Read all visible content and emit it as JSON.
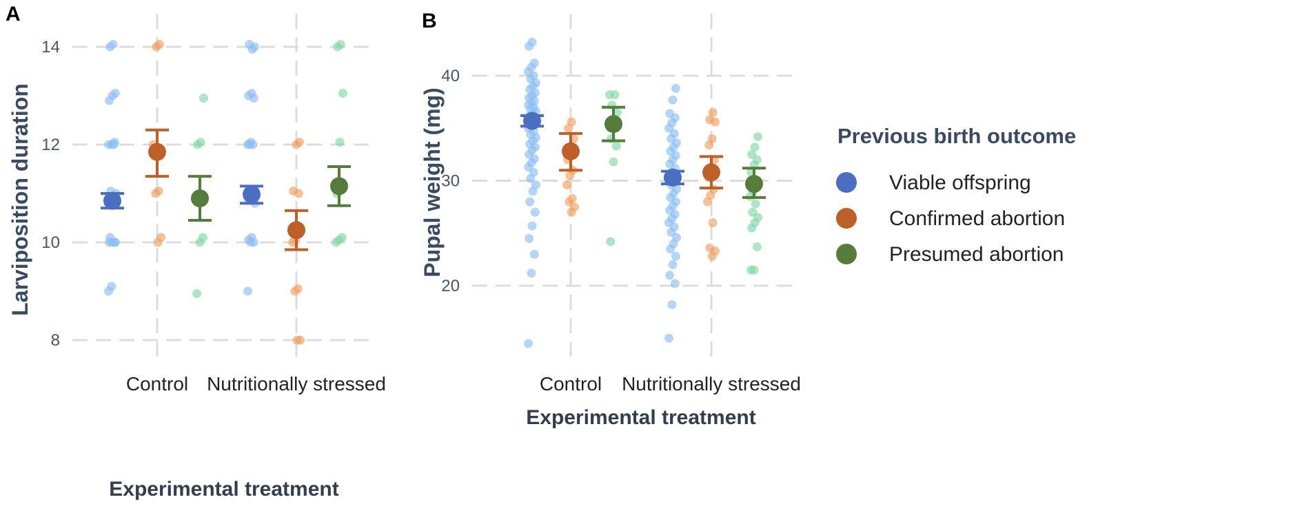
{
  "chart_data": [
    {
      "panel_label": "A",
      "type": "scatter",
      "ylabel": "Larviposition duration",
      "xlabel": "Experimental treatment",
      "categories": [
        "Control",
        "Nutritionally stressed"
      ],
      "ylim": [
        7.6,
        14.3
      ],
      "yticks": [
        8,
        10,
        12,
        14
      ],
      "series": [
        {
          "name": "Viable offspring",
          "means": [
            10.85,
            10.98
          ],
          "ci": [
            [
              10.7,
              11.0
            ],
            [
              10.8,
              11.15
            ]
          ],
          "points": [
            [
              9.0,
              9.1,
              10.0,
              10.0,
              10.0,
              10.0,
              10.1,
              10.9,
              11.0,
              11.05,
              12.0,
              12.0,
              12.0,
              12.05,
              12.9,
              13.0,
              13.05,
              14.0,
              14.05
            ],
            [
              9.0,
              10.0,
              10.0,
              10.05,
              10.1,
              10.8,
              10.9,
              11.0,
              11.05,
              12.0,
              12.0,
              12.0,
              12.05,
              12.95,
              13.0,
              13.05,
              14.0,
              14.05,
              13.95
            ]
          ]
        },
        {
          "name": "Confirmed abortion",
          "means": [
            11.85,
            10.25
          ],
          "ci": [
            [
              11.35,
              12.3
            ],
            [
              9.85,
              10.65
            ]
          ],
          "points": [
            [
              10.0,
              10.1,
              11.0,
              11.05,
              12.0,
              14.0,
              14.05
            ],
            [
              8.0,
              8.0,
              9.0,
              9.05,
              10.0,
              10.05,
              11.0,
              11.05,
              12.0,
              12.05
            ]
          ]
        },
        {
          "name": "Presumed abortion",
          "means": [
            10.9,
            11.15
          ],
          "ci": [
            [
              10.45,
              11.35
            ],
            [
              10.75,
              11.55
            ]
          ],
          "points": [
            [
              8.95,
              10.0,
              10.1,
              12.0,
              12.05,
              12.95
            ],
            [
              10.0,
              10.05,
              10.1,
              11.0,
              12.05,
              13.05,
              14.0,
              14.05
            ]
          ]
        }
      ]
    },
    {
      "panel_label": "B",
      "type": "scatter",
      "ylabel": "Pupal weight (mg)",
      "xlabel": "Experimental treatment",
      "categories": [
        "Control",
        "Nutritionally stressed"
      ],
      "ylim": [
        14,
        44
      ],
      "yticks": [
        20,
        30,
        40
      ],
      "series": [
        {
          "name": "Viable offspring",
          "means": [
            35.7,
            30.3
          ],
          "ci": [
            [
              35.2,
              36.2
            ],
            [
              29.7,
              30.9
            ]
          ],
          "points": [
            [
              14.5,
              21.2,
              23.0,
              24.5,
              25.7,
              27.0,
              28.0,
              29.0,
              29.6,
              30.2,
              30.8,
              31.3,
              31.7,
              32.1,
              32.5,
              32.9,
              33.2,
              33.5,
              33.8,
              34.1,
              34.4,
              34.7,
              35.0,
              35.2,
              35.4,
              35.6,
              35.8,
              36.0,
              36.2,
              36.4,
              36.6,
              36.8,
              37.0,
              37.2,
              37.4,
              37.6,
              37.9,
              38.1,
              38.4,
              38.7,
              39.0,
              39.3,
              39.7,
              40.0,
              40.4,
              40.8,
              41.2,
              42.8,
              43.2
            ],
            [
              15.0,
              18.2,
              20.2,
              21.0,
              22.0,
              22.8,
              23.5,
              24.0,
              24.6,
              25.1,
              25.6,
              26.0,
              26.4,
              26.8,
              27.2,
              27.6,
              28.0,
              28.4,
              28.8,
              29.2,
              29.6,
              30.0,
              30.4,
              30.8,
              31.2,
              31.6,
              32.0,
              32.4,
              32.8,
              33.2,
              33.6,
              34.0,
              34.5,
              35.0,
              35.5,
              36.0,
              36.4,
              37.7,
              38.8
            ]
          ]
        },
        {
          "name": "Confirmed abortion",
          "means": [
            32.8,
            30.8
          ],
          "ci": [
            [
              31.0,
              34.5
            ],
            [
              29.3,
              32.3
            ]
          ],
          "points": [
            [
              27.0,
              27.5,
              28.0,
              28.3,
              29.6,
              30.5,
              31.0,
              32.0,
              33.0,
              34.0,
              35.0,
              35.6
            ],
            [
              22.8,
              23.3,
              23.6,
              26.0,
              28.0,
              28.6,
              29.2,
              30.3,
              31.3,
              32.0,
              33.4,
              34.0,
              35.6,
              35.8,
              36.5
            ]
          ]
        },
        {
          "name": "Presumed abortion",
          "means": [
            35.4,
            29.7
          ],
          "ci": [
            [
              33.8,
              37.0
            ],
            [
              28.4,
              31.2
            ]
          ],
          "points": [
            [
              24.2,
              31.8,
              33.3,
              34.0,
              35.0,
              36.5,
              37.2,
              38.2,
              38.2
            ],
            [
              21.5,
              21.5,
              23.7,
              25.5,
              26.0,
              26.5,
              27.0,
              27.8,
              28.5,
              29.0,
              30.0,
              30.8,
              31.5,
              32.0,
              32.5,
              33.2,
              34.2
            ]
          ]
        }
      ]
    }
  ],
  "legend": {
    "title": "Previous birth outcome",
    "items": [
      "Viable offspring",
      "Confirmed abortion",
      "Presumed abortion"
    ]
  },
  "colors": {
    "viable_mean": "#4a6fc0",
    "viable_point": "#8cbff2",
    "confirmed_mean": "#bf5f28",
    "confirmed_point": "#f0a060",
    "presumed_mean": "#557c3a",
    "presumed_point": "#7fd8a4"
  }
}
